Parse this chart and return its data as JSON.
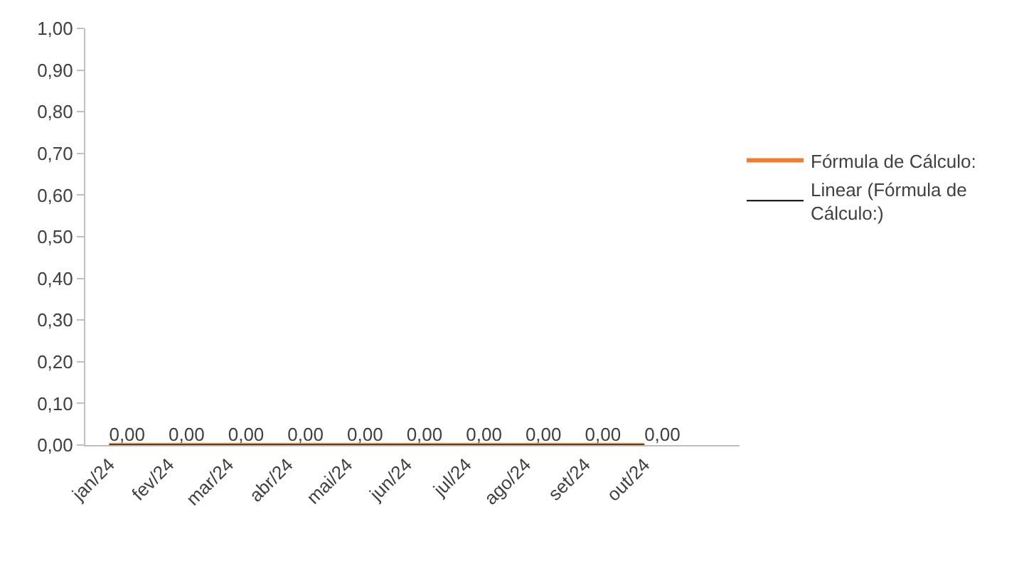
{
  "chart_data": {
    "type": "line",
    "categories": [
      "jan/24",
      "fev/24",
      "mar/24",
      "abr/24",
      "mai/24",
      "jun/24",
      "jul/24",
      "ago/24",
      "set/24",
      "out/24"
    ],
    "series": [
      {
        "name": "Fórmula de Cálculo:",
        "color": "#ed7d31",
        "values": [
          0,
          0,
          0,
          0,
          0,
          0,
          0,
          0,
          0,
          0
        ],
        "value_labels": [
          "0,00",
          "0,00",
          "0,00",
          "0,00",
          "0,00",
          "0,00",
          "0,00",
          "0,00",
          "0,00",
          "0,00"
        ]
      },
      {
        "name": "Linear (Fórmula de Cálculo:)",
        "color": "#000000",
        "values": [
          0,
          0,
          0,
          0,
          0,
          0,
          0,
          0,
          0,
          0
        ]
      }
    ],
    "ylim": [
      0,
      1
    ],
    "yticks": [
      {
        "value": 0,
        "label": "0,00"
      },
      {
        "value": 0.1,
        "label": "0,10"
      },
      {
        "value": 0.2,
        "label": "0,20"
      },
      {
        "value": 0.3,
        "label": "0,30"
      },
      {
        "value": 0.4,
        "label": "0,40"
      },
      {
        "value": 0.5,
        "label": "0,50"
      },
      {
        "value": 0.6,
        "label": "0,60"
      },
      {
        "value": 0.7,
        "label": "0,70"
      },
      {
        "value": 0.8,
        "label": "0,80"
      },
      {
        "value": 0.9,
        "label": "0,90"
      },
      {
        "value": 1,
        "label": "1,00"
      }
    ],
    "grid": false,
    "legend": "right",
    "marker": "none",
    "line_style": "solid"
  }
}
